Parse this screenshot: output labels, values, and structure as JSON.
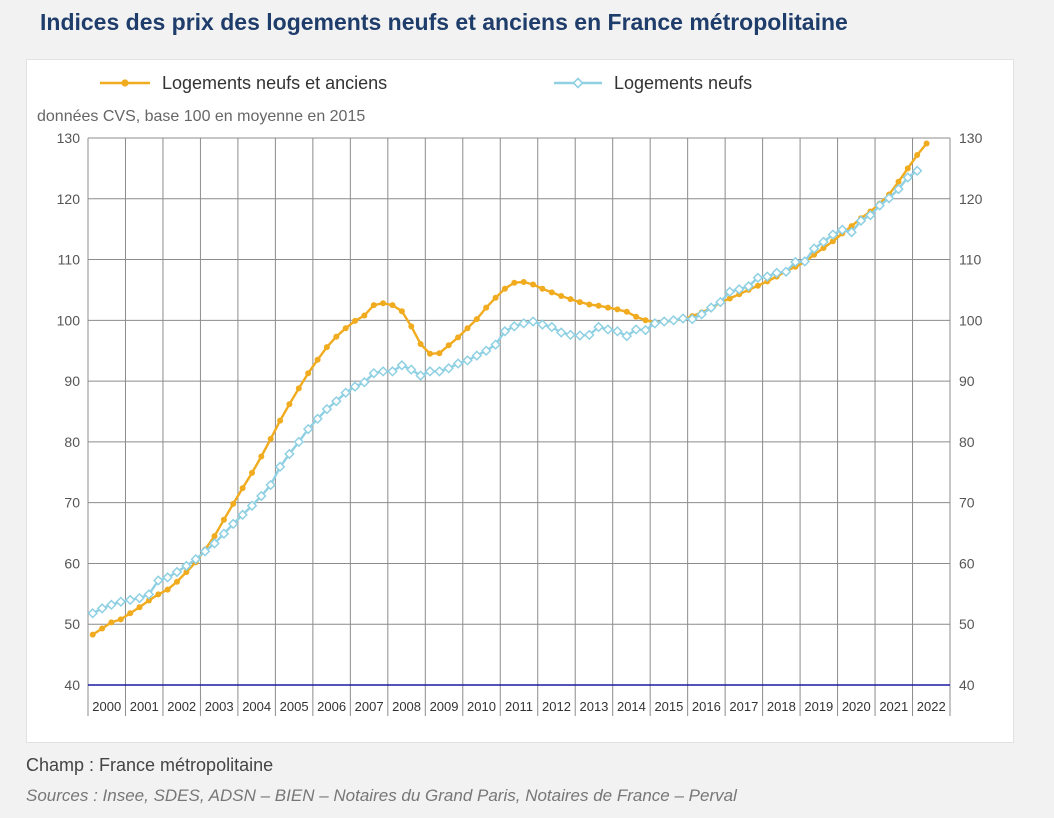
{
  "title": "Indices des prix des logements neufs et anciens en France métropolitaine",
  "unit_note": "données CVS, base 100 en moyenne en 2015",
  "field_note": "Champ : France métropolitaine",
  "sources": "Sources : Insee, SDES, ADSN – BIEN – Notaires du Grand Paris, Notaires de France – Perval",
  "colors": {
    "total": "#f0ab1e",
    "neufs": "#8fd0e3",
    "baseline": "#1a1aa0",
    "grid": "#8c8c8c"
  },
  "chart_data": {
    "type": "line",
    "title": "Indices des prix des logements neufs et anciens en France métropolitaine",
    "ylabel": "données CVS, base 100 en moyenne en 2015",
    "ylim": [
      40,
      130
    ],
    "yticks": [
      40,
      50,
      60,
      70,
      80,
      90,
      100,
      110,
      120,
      130
    ],
    "years": [
      "2000",
      "2001",
      "2002",
      "2003",
      "2004",
      "2005",
      "2006",
      "2007",
      "2008",
      "2009",
      "2010",
      "2011",
      "2012",
      "2013",
      "2014",
      "2015",
      "2016",
      "2017",
      "2018",
      "2019",
      "2020",
      "2021",
      "2022"
    ],
    "x_start": 2000,
    "x_end": 2023,
    "points_per_year": 4,
    "legend_position": "top",
    "grid": true,
    "series": [
      {
        "name": "Logements neufs et anciens",
        "marker": "filled-circle",
        "values": [
          48.3,
          49.3,
          50.3,
          50.8,
          51.8,
          52.8,
          53.9,
          54.9,
          55.7,
          57,
          58.6,
          60.2,
          62.3,
          64.5,
          67.2,
          69.8,
          72.4,
          74.9,
          77.6,
          80.5,
          83.5,
          86.2,
          88.8,
          91.3,
          93.5,
          95.6,
          97.3,
          98.7,
          99.9,
          100.8,
          102.5,
          102.8,
          102.5,
          101.5,
          99,
          96.1,
          94.5,
          94.6,
          95.9,
          97.2,
          98.7,
          100.2,
          102.1,
          103.7,
          105.2,
          106.2,
          106.3,
          105.9,
          105.2,
          104.6,
          104,
          103.5,
          103,
          102.6,
          102.4,
          102.1,
          101.8,
          101.4,
          100.6,
          100,
          99.7,
          99.7,
          100,
          100.2,
          100.7,
          101.3,
          102,
          102.9,
          103.6,
          104.3,
          105,
          105.7,
          106.4,
          107.2,
          108.1,
          108.8,
          109.6,
          110.8,
          111.9,
          113,
          114.3,
          115.5,
          116.8,
          117.9,
          119.2,
          120.7,
          122.8,
          125,
          127.2,
          129.1
        ]
      },
      {
        "name": "Logements neufs",
        "marker": "open-diamond",
        "values": [
          51.8,
          52.6,
          53.2,
          53.7,
          54,
          54.3,
          54.9,
          57.2,
          57.7,
          58.6,
          59.6,
          60.7,
          62,
          63.3,
          64.9,
          66.5,
          68,
          69.5,
          71.1,
          72.9,
          75.9,
          78,
          80,
          82.1,
          83.8,
          85.4,
          86.7,
          88.1,
          89.1,
          89.8,
          91.3,
          91.6,
          91.6,
          92.6,
          91.9,
          90.9,
          91.6,
          91.6,
          92.1,
          92.9,
          93.4,
          94.2,
          95,
          96,
          98.2,
          99,
          99.5,
          99.8,
          99.3,
          98.9,
          98,
          97.6,
          97.5,
          97.6,
          98.9,
          98.5,
          98.2,
          97.4,
          98.5,
          98.4,
          99.5,
          99.8,
          100,
          100.3,
          100.2,
          101,
          102.1,
          103,
          104.7,
          105.1,
          105.6,
          107,
          107.2,
          107.8,
          108,
          109.6,
          109.7,
          111.8,
          112.9,
          114.1,
          114.9,
          114.5,
          116.4,
          117.3,
          118.9,
          120.1,
          121.6,
          123.5,
          124.6
        ]
      }
    ]
  }
}
